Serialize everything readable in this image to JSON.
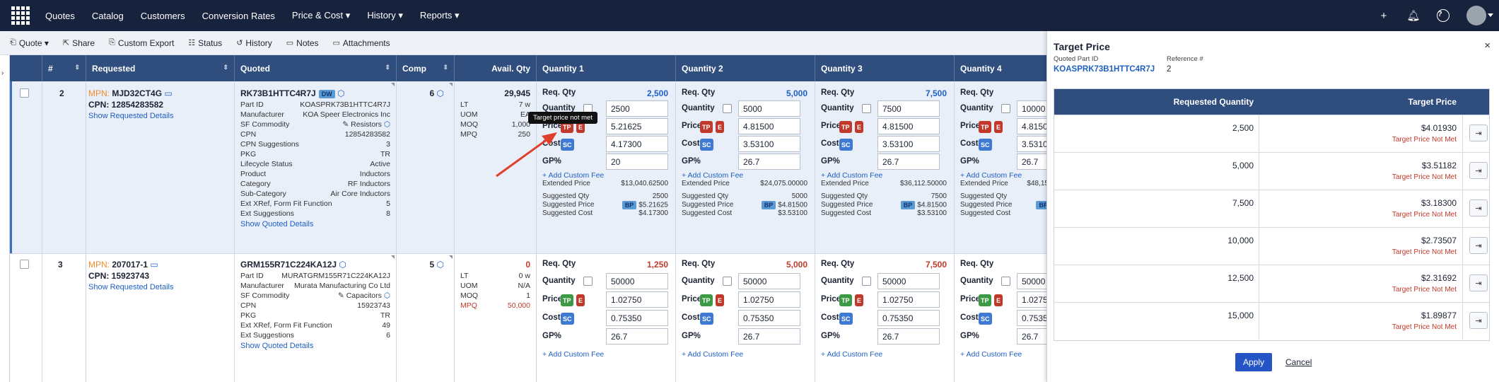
{
  "nav": {
    "items": [
      "Quotes",
      "Catalog",
      "Customers",
      "Conversion Rates",
      "Price & Cost ▾",
      "History ▾",
      "Reports ▾"
    ]
  },
  "toolbar": {
    "items": [
      "Quote ▾",
      "Share",
      "Custom Export",
      "Status",
      "History",
      "Notes",
      "Attachments"
    ]
  },
  "grid": {
    "headers": [
      "#",
      "Requested",
      "Quoted",
      "Comp",
      "Avail. Qty",
      "Quantity 1",
      "Quantity 2",
      "Quantity 3",
      "Quantity 4"
    ],
    "rows": [
      {
        "num": "2",
        "mpn_label": "MPN:",
        "mpn": "MJD32CT4G",
        "cpn": "CPN: 12854283582",
        "show_req": "Show Requested Details",
        "quoted_pn": "RK73B1HTTC4R7J",
        "quoted_badge": "DW",
        "attrs": [
          [
            "Part ID",
            "KOASPRK73B1HTTC4R7J"
          ],
          [
            "Manufacturer",
            "KOA Speer Electronics Inc"
          ],
          [
            "SF Commodity",
            "Resistors"
          ],
          [
            "CPN",
            "12854283582"
          ],
          [
            "CPN Suggestions",
            "3"
          ],
          [
            "PKG",
            "TR"
          ],
          [
            "Lifecycle Status",
            "Active"
          ],
          [
            "Product",
            "Inductors"
          ],
          [
            "Category",
            "RF Inductors"
          ],
          [
            "Sub-Category",
            "Air Core Inductors"
          ],
          [
            "Ext XRef, Form Fit Function",
            "5"
          ],
          [
            "Ext Suggestions",
            "8"
          ]
        ],
        "show_quoted": "Show Quoted Details",
        "comp": "6",
        "avail": "29,945",
        "avail_kv": [
          [
            "LT",
            "7 w"
          ],
          [
            "UOM",
            "EA"
          ],
          [
            "MOQ",
            "1,000"
          ],
          [
            "MPQ",
            "250"
          ]
        ],
        "qtys": [
          {
            "req": "2,500",
            "qty": "2500",
            "price": "5.21625",
            "cost": "4.17300",
            "gp": "20",
            "ext": "$13,040.62500",
            "sq": "2500",
            "sp": "$5.21625",
            "sc": "$4.17300"
          },
          {
            "req": "5,000",
            "qty": "5000",
            "price": "4.81500",
            "cost": "3.53100",
            "gp": "26.7",
            "ext": "$24,075.00000",
            "sq": "5000",
            "sp": "$4.81500",
            "sc": "$3.53100"
          },
          {
            "req": "7,500",
            "qty": "7500",
            "price": "4.81500",
            "cost": "3.53100",
            "gp": "26.7",
            "ext": "$36,112.50000",
            "sq": "7500",
            "sp": "$4.81500",
            "sc": "$3.53100"
          },
          {
            "req": "",
            "qty": "10000",
            "price": "4.81500",
            "cost": "3.53100",
            "gp": "26.7",
            "ext": "$48,15",
            "sq": "",
            "sp": "",
            "sc": ""
          }
        ]
      },
      {
        "num": "3",
        "mpn_label": "MPN:",
        "mpn": "207017-1",
        "cpn": "CPN: 15923743",
        "show_req": "Show Requested Details",
        "quoted_pn": "GRM155R71C224KA12J",
        "attrs": [
          [
            "Part ID",
            "MURATGRM155R71C224KA12J"
          ],
          [
            "Manufacturer",
            "Murata Manufacturing Co Ltd"
          ],
          [
            "SF Commodity",
            "Capacitors"
          ],
          [
            "CPN",
            "15923743"
          ],
          [
            "PKG",
            "TR"
          ],
          [
            "Ext XRef, Form Fit Function",
            "49"
          ],
          [
            "Ext Suggestions",
            "6"
          ]
        ],
        "show_quoted": "Show Quoted Details",
        "comp": "5",
        "avail": "0",
        "avail_kv": [
          [
            "LT",
            "0 w"
          ],
          [
            "UOM",
            "N/A"
          ],
          [
            "MOQ",
            "1"
          ],
          [
            "MPQ",
            "50,000"
          ]
        ],
        "qtys": [
          {
            "req": "1,250",
            "qty": "50000",
            "price": "1.02750",
            "cost": "0.75350",
            "gp": "26.7"
          },
          {
            "req": "5,000",
            "qty": "50000",
            "price": "1.02750",
            "cost": "0.75350",
            "gp": "26.7"
          },
          {
            "req": "7,500",
            "qty": "50000",
            "price": "1.02750",
            "cost": "0.75350",
            "gp": "26.7"
          },
          {
            "req": "",
            "qty": "50000",
            "price": "1.02750",
            "cost": "0.7535",
            "gp": "26.7"
          }
        ]
      }
    ],
    "labels": {
      "req_qty": "Req. Qty",
      "quantity": "Quantity",
      "price": "Price",
      "cost": "Cost",
      "gp": "GP%",
      "add_fee": "+ Add Custom Fee",
      "ext": "Extended Price",
      "sq": "Suggested Qty",
      "sp": "Suggested Price",
      "sc": "Suggested Cost",
      "tp": "TP",
      "e": "E",
      "sc_tag": "SC",
      "bp": "BP"
    },
    "tooltip": "Target price not met"
  },
  "panel": {
    "title": "Target Price",
    "close": "×",
    "quoted_pn_label": "Quoted Part ID",
    "quoted_pn": "KOASPRK73B1HTTC4R7J",
    "ref_label": "Reference #",
    "ref": "2",
    "col_qty": "Requested Quantity",
    "col_price": "Target Price",
    "rows": [
      {
        "qty": "2,500",
        "price": "$4.01930",
        "status": "Target Price Not Met"
      },
      {
        "qty": "5,000",
        "price": "$3.51182",
        "status": "Target Price Not Met"
      },
      {
        "qty": "7,500",
        "price": "$3.18300",
        "status": "Target Price Not Met"
      },
      {
        "qty": "10,000",
        "price": "$2.73507",
        "status": "Target Price Not Met"
      },
      {
        "qty": "12,500",
        "price": "$2.31692",
        "status": "Target Price Not Met"
      },
      {
        "qty": "15,000",
        "price": "$1.89877",
        "status": "Target Price Not Met"
      }
    ],
    "apply": "Apply",
    "cancel": "Cancel"
  },
  "colors": {
    "nav_bg": "#17223d",
    "header_bg": "#2f4d7d",
    "accent": "#2454c6",
    "danger": "#c0392b",
    "success": "#3d9a44",
    "mpn_label": "#f28c28"
  }
}
